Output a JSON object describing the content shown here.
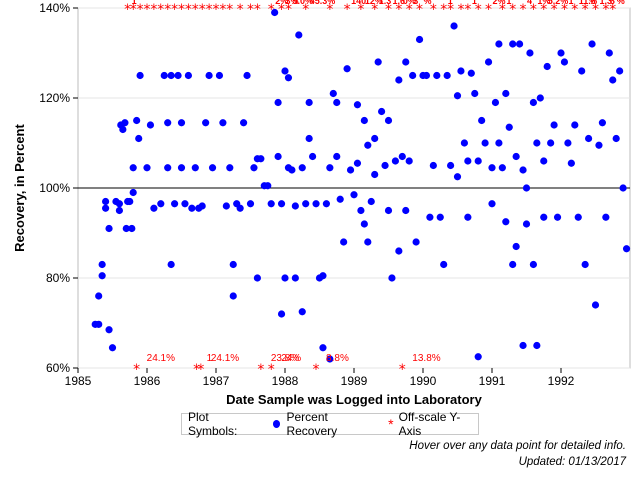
{
  "chart_data": {
    "type": "scatter",
    "title": "",
    "xlabel": "Date Sample was Logged into Laboratory",
    "ylabel": "Recovery, in Percent",
    "xlim": [
      1985,
      1993
    ],
    "ylim": [
      60,
      140
    ],
    "xticks": [
      "1985",
      "1986",
      "1987",
      "1988",
      "1989",
      "1990",
      "1991",
      "1992"
    ],
    "yticks": [
      "60%",
      "80%",
      "100%",
      "120%",
      "140%"
    ],
    "reference_line_y": 100,
    "grid": "horizontal",
    "series": [
      {
        "name": "Percent Recovery",
        "color": "#0000ff",
        "marker": "circle",
        "points": [
          [
            1985.25,
            69.7
          ],
          [
            1985.3,
            69.7
          ],
          [
            1985.3,
            76
          ],
          [
            1985.35,
            80.5
          ],
          [
            1985.35,
            83
          ],
          [
            1985.4,
            97
          ],
          [
            1985.4,
            95.5
          ],
          [
            1985.45,
            91
          ],
          [
            1985.45,
            68.5
          ],
          [
            1985.5,
            64.5
          ],
          [
            1985.55,
            97
          ],
          [
            1985.6,
            96.5
          ],
          [
            1985.6,
            95
          ],
          [
            1985.62,
            114
          ],
          [
            1985.65,
            113
          ],
          [
            1985.68,
            114.5
          ],
          [
            1985.7,
            91
          ],
          [
            1985.72,
            97
          ],
          [
            1985.75,
            97
          ],
          [
            1985.78,
            91
          ],
          [
            1985.8,
            99
          ],
          [
            1985.8,
            104.5
          ],
          [
            1985.85,
            115
          ],
          [
            1985.88,
            111
          ],
          [
            1985.9,
            125
          ],
          [
            1986.0,
            104.5
          ],
          [
            1986.05,
            114
          ],
          [
            1986.1,
            95.5
          ],
          [
            1986.2,
            96.5
          ],
          [
            1986.25,
            125
          ],
          [
            1986.3,
            114.5
          ],
          [
            1986.3,
            104.5
          ],
          [
            1986.35,
            125
          ],
          [
            1986.35,
            83
          ],
          [
            1986.4,
            96.5
          ],
          [
            1986.45,
            125
          ],
          [
            1986.5,
            114.5
          ],
          [
            1986.5,
            104.5
          ],
          [
            1986.55,
            96.5
          ],
          [
            1986.6,
            125
          ],
          [
            1986.65,
            95.5
          ],
          [
            1986.7,
            104.5
          ],
          [
            1986.75,
            95.5
          ],
          [
            1986.8,
            96
          ],
          [
            1986.85,
            114.5
          ],
          [
            1986.9,
            125
          ],
          [
            1986.95,
            104.5
          ],
          [
            1987.05,
            125
          ],
          [
            1987.1,
            114.5
          ],
          [
            1987.15,
            96
          ],
          [
            1987.2,
            104.5
          ],
          [
            1987.25,
            76
          ],
          [
            1987.25,
            83
          ],
          [
            1987.3,
            96.5
          ],
          [
            1987.35,
            95.5
          ],
          [
            1987.4,
            114.5
          ],
          [
            1987.45,
            125
          ],
          [
            1987.5,
            96.5
          ],
          [
            1987.55,
            104.5
          ],
          [
            1987.6,
            106.5
          ],
          [
            1987.6,
            80
          ],
          [
            1987.65,
            106.5
          ],
          [
            1987.7,
            100.5
          ],
          [
            1987.75,
            100.5
          ],
          [
            1987.8,
            96.5
          ],
          [
            1987.85,
            139
          ],
          [
            1987.9,
            119
          ],
          [
            1987.9,
            107
          ],
          [
            1987.95,
            96.5
          ],
          [
            1987.95,
            72
          ],
          [
            1988.0,
            126
          ],
          [
            1988.0,
            80
          ],
          [
            1988.05,
            124.5
          ],
          [
            1988.05,
            104.5
          ],
          [
            1988.1,
            104
          ],
          [
            1988.15,
            96
          ],
          [
            1988.15,
            80
          ],
          [
            1988.2,
            134
          ],
          [
            1988.25,
            104.5
          ],
          [
            1988.25,
            72.5
          ],
          [
            1988.3,
            96.5
          ],
          [
            1988.35,
            119
          ],
          [
            1988.35,
            111
          ],
          [
            1988.4,
            107
          ],
          [
            1988.45,
            96.5
          ],
          [
            1988.5,
            80
          ],
          [
            1988.55,
            80.5
          ],
          [
            1988.55,
            64.5
          ],
          [
            1988.6,
            96.5
          ],
          [
            1988.65,
            104.5
          ],
          [
            1988.65,
            62
          ],
          [
            1988.7,
            121
          ],
          [
            1988.75,
            119
          ],
          [
            1988.75,
            107
          ],
          [
            1988.8,
            97.5
          ],
          [
            1988.85,
            88
          ],
          [
            1988.9,
            126.5
          ],
          [
            1988.95,
            104
          ],
          [
            1989.0,
            98.5
          ],
          [
            1989.05,
            118.5
          ],
          [
            1989.05,
            105.5
          ],
          [
            1989.1,
            95
          ],
          [
            1989.15,
            115
          ],
          [
            1989.15,
            92
          ],
          [
            1989.2,
            109.5
          ],
          [
            1989.2,
            88
          ],
          [
            1989.25,
            97
          ],
          [
            1989.3,
            111
          ],
          [
            1989.3,
            103
          ],
          [
            1989.35,
            128
          ],
          [
            1989.4,
            117
          ],
          [
            1989.45,
            105
          ],
          [
            1989.5,
            115
          ],
          [
            1989.5,
            95
          ],
          [
            1989.55,
            80
          ],
          [
            1989.6,
            106
          ],
          [
            1989.65,
            124
          ],
          [
            1989.65,
            86
          ],
          [
            1989.7,
            107
          ],
          [
            1989.75,
            128
          ],
          [
            1989.75,
            95
          ],
          [
            1989.8,
            106
          ],
          [
            1989.85,
            125
          ],
          [
            1989.9,
            88
          ],
          [
            1989.95,
            133
          ],
          [
            1990.0,
            125
          ],
          [
            1990.05,
            125
          ],
          [
            1990.1,
            93.5
          ],
          [
            1990.15,
            105
          ],
          [
            1990.2,
            125
          ],
          [
            1990.25,
            93.5
          ],
          [
            1990.3,
            83
          ],
          [
            1990.35,
            125
          ],
          [
            1990.4,
            105
          ],
          [
            1990.45,
            136
          ],
          [
            1990.5,
            120.5
          ],
          [
            1990.5,
            102.5
          ],
          [
            1990.55,
            126
          ],
          [
            1990.6,
            110
          ],
          [
            1990.65,
            106
          ],
          [
            1990.65,
            93.5
          ],
          [
            1990.7,
            125.5
          ],
          [
            1990.75,
            121
          ],
          [
            1990.8,
            106
          ],
          [
            1990.8,
            62.5
          ],
          [
            1990.85,
            115
          ],
          [
            1990.9,
            110
          ],
          [
            1990.95,
            128
          ],
          [
            1991.0,
            104.5
          ],
          [
            1991.0,
            96.5
          ],
          [
            1991.05,
            119
          ],
          [
            1991.1,
            132
          ],
          [
            1991.1,
            110
          ],
          [
            1991.15,
            104.5
          ],
          [
            1991.2,
            121
          ],
          [
            1991.2,
            92.5
          ],
          [
            1991.25,
            113.5
          ],
          [
            1991.3,
            132
          ],
          [
            1991.3,
            83
          ],
          [
            1991.35,
            107
          ],
          [
            1991.35,
            87
          ],
          [
            1991.4,
            132
          ],
          [
            1991.45,
            104
          ],
          [
            1991.45,
            65
          ],
          [
            1991.5,
            100
          ],
          [
            1991.5,
            92
          ],
          [
            1991.55,
            130
          ],
          [
            1991.6,
            119
          ],
          [
            1991.6,
            83
          ],
          [
            1991.65,
            110
          ],
          [
            1991.65,
            65
          ],
          [
            1991.7,
            120
          ],
          [
            1991.75,
            106
          ],
          [
            1991.75,
            93.5
          ],
          [
            1991.8,
            127
          ],
          [
            1991.85,
            110
          ],
          [
            1991.9,
            114
          ],
          [
            1991.95,
            93.5
          ],
          [
            1992.0,
            130
          ],
          [
            1992.05,
            128
          ],
          [
            1992.1,
            110
          ],
          [
            1992.15,
            105.5
          ],
          [
            1992.2,
            114
          ],
          [
            1992.25,
            93.5
          ],
          [
            1992.3,
            126
          ],
          [
            1992.35,
            83
          ],
          [
            1992.4,
            111
          ],
          [
            1992.45,
            132
          ],
          [
            1992.5,
            74
          ],
          [
            1992.55,
            109.5
          ],
          [
            1992.6,
            114.5
          ],
          [
            1992.65,
            93.5
          ],
          [
            1992.7,
            130
          ],
          [
            1992.75,
            124
          ],
          [
            1992.8,
            111
          ],
          [
            1992.85,
            126
          ],
          [
            1992.9,
            100
          ],
          [
            1992.95,
            86.5
          ]
        ]
      },
      {
        "name": "Off-scale Y-Axis",
        "color": "#ff0000",
        "marker": "asterisk",
        "high_points": [
          {
            "x": 1985.72,
            "label": "1"
          },
          {
            "x": 1985.8,
            "label": ""
          },
          {
            "x": 1985.9,
            "label": ""
          },
          {
            "x": 1986.0,
            "label": ""
          },
          {
            "x": 1986.1,
            "label": ""
          },
          {
            "x": 1986.2,
            "label": ""
          },
          {
            "x": 1986.3,
            "label": ""
          },
          {
            "x": 1986.4,
            "label": ""
          },
          {
            "x": 1986.5,
            "label": ""
          },
          {
            "x": 1986.6,
            "label": ""
          },
          {
            "x": 1986.7,
            "label": ""
          },
          {
            "x": 1986.8,
            "label": ""
          },
          {
            "x": 1986.9,
            "label": ""
          },
          {
            "x": 1987.0,
            "label": ""
          },
          {
            "x": 1987.1,
            "label": ""
          },
          {
            "x": 1987.2,
            "label": ""
          },
          {
            "x": 1987.35,
            "label": ""
          },
          {
            "x": 1987.5,
            "label": ""
          },
          {
            "x": 1987.6,
            "label": ""
          },
          {
            "x": 1987.8,
            "label": "2%"
          },
          {
            "x": 1987.95,
            "label": "3%"
          },
          {
            "x": 1988.05,
            "label": "5.0%"
          },
          {
            "x": 1988.3,
            "label": "45.3%"
          },
          {
            "x": 1988.65,
            "label": ""
          },
          {
            "x": 1988.9,
            "label": "140."
          },
          {
            "x": 1989.1,
            "label": "12%"
          },
          {
            "x": 1989.3,
            "label": "1.3"
          },
          {
            "x": 1989.5,
            "label": "1.6"
          },
          {
            "x": 1989.65,
            "label": "0%"
          },
          {
            "x": 1989.8,
            "label": "3"
          },
          {
            "x": 1989.95,
            "label": "%"
          },
          {
            "x": 1990.15,
            "label": ""
          },
          {
            "x": 1990.3,
            "label": "1"
          },
          {
            "x": 1990.4,
            "label": ""
          },
          {
            "x": 1990.55,
            "label": ""
          },
          {
            "x": 1990.65,
            "label": "1"
          },
          {
            "x": 1990.8,
            "label": ""
          },
          {
            "x": 1990.95,
            "label": "2%"
          },
          {
            "x": 1991.15,
            "label": "1"
          },
          {
            "x": 1991.3,
            "label": ""
          },
          {
            "x": 1991.45,
            "label": "4"
          },
          {
            "x": 1991.6,
            "label": "1%"
          },
          {
            "x": 1991.75,
            "label": "5.2%"
          },
          {
            "x": 1991.9,
            "label": ""
          },
          {
            "x": 1992.05,
            "label": "1"
          },
          {
            "x": 1992.2,
            "label": "11.6"
          },
          {
            "x": 1992.35,
            "label": "%"
          },
          {
            "x": 1992.5,
            "label": "1.3"
          },
          {
            "x": 1992.65,
            "label": "6"
          },
          {
            "x": 1992.75,
            "label": "%"
          }
        ],
        "low_points": [
          {
            "x": 1985.85,
            "label": "24.1%"
          },
          {
            "x": 1986.72,
            "label": "1"
          },
          {
            "x": 1986.78,
            "label": "24.1%"
          },
          {
            "x": 1987.65,
            "label": "23.8%"
          },
          {
            "x": 1987.8,
            "label": "24%"
          },
          {
            "x": 1988.45,
            "label": "8.8%"
          },
          {
            "x": 1989.7,
            "label": "13.8%"
          }
        ]
      }
    ]
  },
  "legend": {
    "title": "Plot Symbols:",
    "items": [
      "Percent Recovery",
      "Off-scale Y-Axis"
    ]
  },
  "footnote": {
    "line1": "Hover over any data point for detailed info.",
    "line2": "Updated: 01/13/2017"
  }
}
